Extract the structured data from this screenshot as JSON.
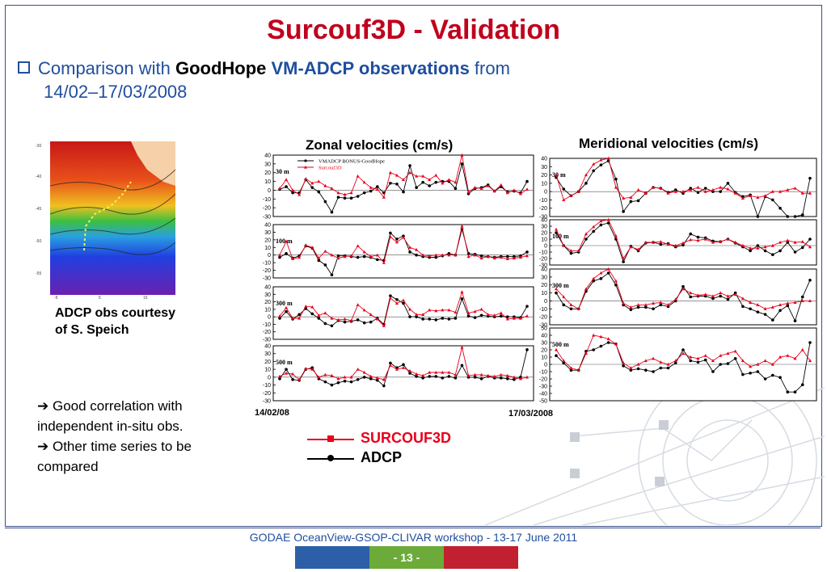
{
  "title": "Surcouf3D - Validation",
  "subtitle": {
    "prefix": "Comparison with ",
    "bold1": "GoodHope",
    "bold2": " VM-ADCP observations",
    "suffix": " from",
    "line2": "14/02–17/03/2008"
  },
  "map_caption": {
    "line1": "ADCP obs courtesy",
    "line2": "of S. Speich"
  },
  "notes": {
    "arrow": "➔",
    "line1": " Good correlation with",
    "line2": "independent in-situ obs.",
    "line3": " Other time series to be",
    "line4": "compared"
  },
  "panels": {
    "zonal_title": "Zonal velocities (cm/s)",
    "meridional_title": "Meridional velocities (cm/s)"
  },
  "dates": {
    "start": "14/02/08",
    "end": "17/03/2008"
  },
  "legend": {
    "surcouf": "SURCOUF3D",
    "adcp": "ADCP",
    "colors": {
      "surcouf": "#e8001c",
      "adcp": "#000000"
    }
  },
  "footer": "GODAE OceanView-GSOP-CLIVAR workshop  -  13-17 June 2011",
  "page_number": "- 13 -",
  "chart_data": [
    {
      "type": "line",
      "title": "Zonal velocities (cm/s)",
      "inner_legend": [
        "VMADCP BONUS-GoodHope",
        "Surcouf3D"
      ],
      "subplots": [
        {
          "label": "30 m",
          "ylim": [
            -30,
            40
          ],
          "yticks": [
            -30,
            -20,
            -10,
            0,
            10,
            20,
            30,
            40
          ],
          "adcp": [
            1,
            4,
            -3,
            -3,
            12,
            3,
            -2,
            -13,
            -25,
            -8,
            -9,
            -9,
            -7,
            -3,
            -1,
            4,
            -3,
            8,
            7,
            -2,
            28,
            3,
            9,
            5,
            9,
            10,
            10,
            2,
            30,
            -4,
            2,
            3,
            6,
            -1,
            4,
            -2,
            -1,
            -3,
            10
          ],
          "surcouf": [
            2,
            12,
            0,
            -5,
            13,
            8,
            10,
            5,
            2,
            -3,
            -5,
            -3,
            16,
            9,
            3,
            1,
            -8,
            20,
            17,
            12,
            20,
            16,
            16,
            12,
            17,
            8,
            12,
            9,
            42,
            -2,
            3,
            2,
            5,
            -1,
            6,
            -3,
            0,
            -4,
            1
          ]
        },
        {
          "label": "100 m",
          "ylim": [
            -30,
            40
          ],
          "yticks": [
            -30,
            -20,
            -10,
            0,
            10,
            20,
            30,
            40
          ],
          "adcp": [
            -3,
            2,
            -4,
            -1,
            12,
            9,
            -7,
            -13,
            -26,
            -1,
            -1,
            -2,
            -3,
            -2,
            -3,
            -6,
            -7,
            29,
            21,
            25,
            4,
            0,
            -2,
            -3,
            -3,
            -1,
            2,
            0,
            34,
            2,
            1,
            -1,
            -2,
            -3,
            -2,
            -2,
            -2,
            -1,
            4
          ],
          "surcouf": [
            0,
            18,
            -5,
            -3,
            13,
            10,
            -4,
            5,
            0,
            -4,
            -2,
            -1,
            12,
            4,
            -2,
            0,
            -10,
            24,
            17,
            23,
            10,
            7,
            0,
            -1,
            0,
            0,
            0,
            0,
            38,
            -2,
            0,
            -4,
            -2,
            -4,
            -3,
            -5,
            -4,
            -3,
            -1
          ]
        },
        {
          "label": "300 m",
          "ylim": [
            -30,
            40
          ],
          "yticks": [
            -30,
            -20,
            -10,
            0,
            10,
            20,
            30,
            40
          ],
          "adcp": [
            -2,
            7,
            -3,
            3,
            11,
            4,
            -2,
            -9,
            -12,
            -5,
            -7,
            -6,
            -4,
            -8,
            -7,
            -2,
            -10,
            28,
            23,
            18,
            0,
            0,
            -3,
            -3,
            -4,
            -2,
            -3,
            -2,
            24,
            1,
            -1,
            2,
            1,
            0,
            1,
            0,
            0,
            -1,
            14
          ],
          "surcouf": [
            1,
            12,
            -2,
            -2,
            14,
            13,
            2,
            5,
            -2,
            -4,
            -3,
            -5,
            16,
            9,
            3,
            -3,
            -12,
            25,
            18,
            22,
            10,
            3,
            3,
            9,
            8,
            9,
            9,
            6,
            33,
            5,
            7,
            10,
            3,
            2,
            5,
            -3,
            -2,
            -2,
            1
          ]
        },
        {
          "label": "500 m",
          "ylim": [
            -30,
            40
          ],
          "yticks": [
            -30,
            -20,
            -10,
            0,
            10,
            20,
            30,
            40
          ],
          "adcp": [
            -2,
            10,
            -3,
            -4,
            10,
            12,
            -2,
            -6,
            -10,
            -7,
            -5,
            -6,
            -3,
            0,
            -2,
            -4,
            -11,
            18,
            12,
            16,
            5,
            1,
            -1,
            1,
            1,
            -1,
            1,
            -1,
            15,
            0,
            0,
            -2,
            1,
            -1,
            -1,
            -2,
            -3,
            0,
            35
          ],
          "surcouf": [
            1,
            5,
            4,
            -3,
            11,
            10,
            0,
            3,
            2,
            -2,
            0,
            0,
            10,
            6,
            1,
            -1,
            -3,
            15,
            10,
            12,
            8,
            4,
            2,
            6,
            6,
            6,
            6,
            3,
            38,
            2,
            3,
            3,
            2,
            1,
            3,
            2,
            0,
            -2,
            0
          ]
        }
      ]
    },
    {
      "type": "line",
      "title": "Meridional velocities (cm/s)",
      "subplots": [
        {
          "label": "30 m",
          "ylim": [
            -30,
            40
          ],
          "yticks": [
            -30,
            -20,
            -10,
            0,
            10,
            20,
            30,
            40
          ],
          "adcp": [
            17,
            3,
            -5,
            0,
            10,
            25,
            32,
            37,
            15,
            -24,
            -12,
            -11,
            -2,
            5,
            4,
            -1,
            2,
            -2,
            4,
            -1,
            4,
            0,
            0,
            10,
            -1,
            -6,
            -4,
            -34,
            -6,
            -10,
            -20,
            -32,
            -31,
            -28,
            16
          ],
          "surcouf": [
            20,
            -10,
            -5,
            0,
            20,
            33,
            38,
            40,
            5,
            -8,
            -7,
            2,
            -2,
            5,
            4,
            -2,
            0,
            0,
            2,
            5,
            0,
            2,
            5,
            3,
            -2,
            -8,
            -5,
            -7,
            -5,
            0,
            0,
            2,
            4,
            -2,
            -2
          ]
        },
        {
          "label": "100 m",
          "ylim": [
            -30,
            40
          ],
          "yticks": [
            -30,
            -20,
            -10,
            0,
            10,
            20,
            30,
            40
          ],
          "adcp": [
            20,
            0,
            -12,
            -10,
            10,
            22,
            32,
            35,
            10,
            -25,
            -1,
            -8,
            4,
            5,
            2,
            3,
            -2,
            1,
            18,
            13,
            12,
            7,
            6,
            10,
            4,
            -2,
            -8,
            0,
            -8,
            -14,
            -8,
            5,
            -10,
            -3,
            10
          ],
          "surcouf": [
            25,
            0,
            -8,
            -8,
            18,
            29,
            38,
            40,
            15,
            -20,
            -2,
            -6,
            5,
            5,
            6,
            2,
            0,
            4,
            9,
            8,
            10,
            5,
            6,
            10,
            5,
            0,
            -4,
            -4,
            -2,
            0,
            5,
            8,
            5,
            6,
            -2
          ]
        },
        {
          "label": "300 m",
          "ylim": [
            -30,
            40
          ],
          "yticks": [
            -30,
            -20,
            -10,
            0,
            10,
            20,
            30,
            40
          ],
          "adcp": [
            10,
            -5,
            -10,
            -10,
            12,
            25,
            28,
            35,
            20,
            -5,
            -11,
            -8,
            -8,
            -10,
            -5,
            -7,
            0,
            18,
            5,
            6,
            6,
            3,
            6,
            2,
            10,
            -7,
            -10,
            -14,
            -17,
            -24,
            -12,
            -6,
            -25,
            5,
            26
          ],
          "surcouf": [
            15,
            5,
            -5,
            -10,
            15,
            28,
            35,
            40,
            25,
            -3,
            -8,
            -5,
            -5,
            -3,
            -2,
            -5,
            2,
            15,
            10,
            7,
            8,
            6,
            10,
            6,
            8,
            3,
            -2,
            -5,
            -10,
            -8,
            -5,
            -3,
            -2,
            0,
            0
          ]
        },
        {
          "label": "500 m",
          "ylim": [
            -50,
            50
          ],
          "yticks": [
            -50,
            -40,
            -30,
            -20,
            -10,
            0,
            10,
            20,
            30,
            40,
            50
          ],
          "adcp": [
            12,
            2,
            -8,
            -8,
            18,
            20,
            25,
            30,
            28,
            -2,
            -8,
            -6,
            -8,
            -10,
            -5,
            -5,
            2,
            20,
            5,
            3,
            6,
            -10,
            0,
            1,
            8,
            -14,
            -12,
            -10,
            -20,
            -15,
            -18,
            -38,
            -38,
            -28,
            30
          ],
          "surcouf": [
            20,
            5,
            -5,
            -8,
            15,
            40,
            38,
            35,
            28,
            2,
            -5,
            0,
            5,
            8,
            3,
            0,
            5,
            15,
            10,
            8,
            12,
            5,
            12,
            15,
            18,
            5,
            -3,
            0,
            5,
            0,
            10,
            12,
            8,
            20,
            5
          ]
        }
      ]
    }
  ]
}
